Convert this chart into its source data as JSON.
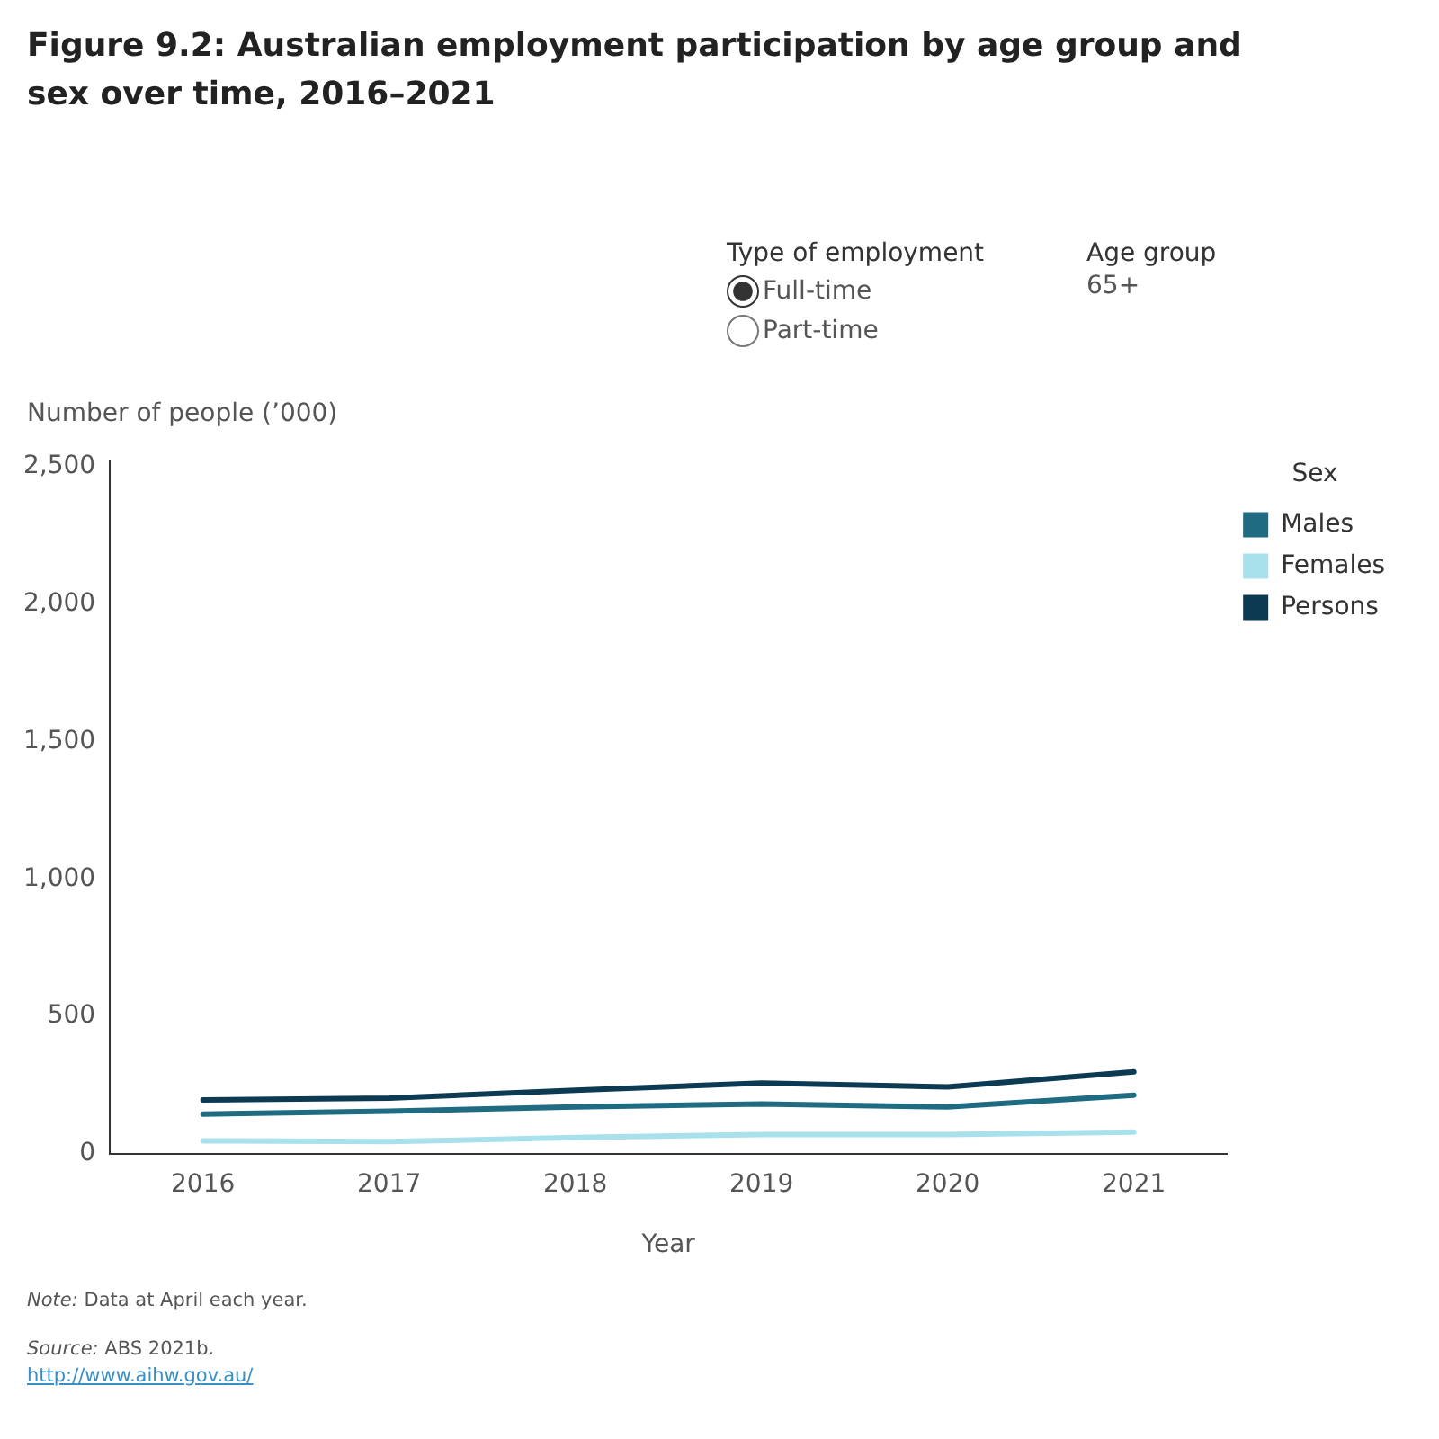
{
  "chart_data": {
    "type": "line",
    "title": "Figure 9.2: Australian employment participation by age group and sex over time, 2016–2021",
    "categories": [
      "2016",
      "2017",
      "2018",
      "2019",
      "2020",
      "2021"
    ],
    "series": [
      {
        "name": "Males",
        "color": "#1f6b82",
        "values": [
          144,
          155,
          170,
          181,
          170,
          213
        ]
      },
      {
        "name": "Females",
        "color": "#a8e1ec",
        "values": [
          47,
          44,
          59,
          70,
          70,
          79
        ]
      },
      {
        "name": "Persons",
        "color": "#0b3a52",
        "values": [
          196,
          202,
          231,
          257,
          243,
          298
        ]
      }
    ],
    "xlabel": "Year",
    "ylabel": "Number of people (’000)",
    "legend_title": "Sex",
    "legend": "right",
    "ylim": [
      0,
      2520
    ],
    "yticks": [
      {
        "value": 0,
        "label": "0"
      },
      {
        "value": 500,
        "label": "500"
      },
      {
        "value": 1000,
        "label": "1,000"
      },
      {
        "value": 1500,
        "label": "1,500"
      },
      {
        "value": 2000,
        "label": "2,000"
      },
      {
        "value": 2500,
        "label": "2,500"
      }
    ],
    "grid": false,
    "marker": "none",
    "line_style": "solid",
    "annotations": [
      "Type of employment",
      "Full-time",
      "Part-time",
      "Age group",
      "65+",
      "Note: Data at April each year.",
      "Source: ABS 2021b.",
      "http://www.aihw.gov.au/"
    ]
  }
}
